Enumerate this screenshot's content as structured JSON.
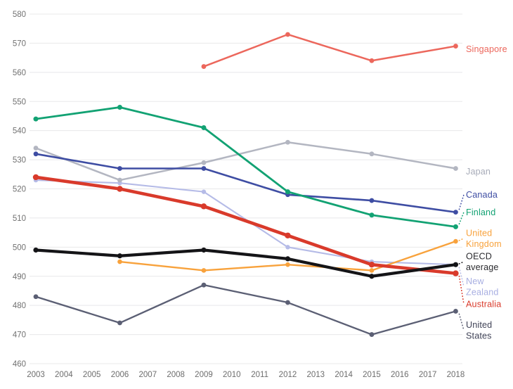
{
  "chart_data": {
    "type": "line",
    "title": "",
    "xlabel": "",
    "ylabel": "",
    "x_ticks": [
      2003,
      2004,
      2005,
      2006,
      2007,
      2008,
      2009,
      2010,
      2011,
      2012,
      2013,
      2014,
      2015,
      2016,
      2017,
      2018
    ],
    "y_ticks": [
      460,
      470,
      480,
      490,
      500,
      510,
      520,
      530,
      540,
      550,
      560,
      570,
      580
    ],
    "ylim": [
      460,
      580
    ],
    "grid": "horizontal",
    "legend_position": "right-direct-labels",
    "years": [
      2003,
      2006,
      2009,
      2012,
      2015,
      2018
    ],
    "series": [
      {
        "name": "Singapore",
        "label_lines": [
          "Singapore"
        ],
        "values": [
          null,
          null,
          562,
          573,
          564,
          569
        ],
        "color": "#ec675c",
        "label_color": "#ec675c",
        "width": 2.5,
        "marker_r": 3.4,
        "label_anchor": 568,
        "leader": false,
        "z": 7
      },
      {
        "name": "Japan",
        "label_lines": [
          "Japan"
        ],
        "values": [
          534,
          523,
          529,
          536,
          532,
          527
        ],
        "color": "#b3b6c1",
        "label_color": "#a7abb8",
        "width": 2.5,
        "marker_r": 3.4,
        "label_anchor": 526,
        "leader": false,
        "z": 2
      },
      {
        "name": "Canada",
        "label_lines": [
          "Canada"
        ],
        "values": [
          532,
          527,
          527,
          518,
          516,
          512
        ],
        "color": "#3e4da3",
        "label_color": "#3e4da3",
        "width": 2.6,
        "marker_r": 3.4,
        "label_anchor": 518,
        "leader": true,
        "z": 5
      },
      {
        "name": "Finland",
        "label_lines": [
          "Finland"
        ],
        "values": [
          544,
          548,
          541,
          519,
          511,
          507
        ],
        "color": "#12a273",
        "label_color": "#12a273",
        "width": 2.8,
        "marker_r": 3.5,
        "label_anchor": 512,
        "leader": true,
        "z": 6
      },
      {
        "name": "United Kingdom",
        "label_lines": [
          "United",
          "Kingdom"
        ],
        "values": [
          null,
          495,
          492,
          494,
          492,
          502
        ],
        "color": "#f8a23c",
        "label_color": "#f8a23c",
        "width": 2.4,
        "marker_r": 3.3,
        "label_anchor": 503,
        "leader": true,
        "z": 4
      },
      {
        "name": "OECD average",
        "label_lines": [
          "OECD",
          "average"
        ],
        "values": [
          499,
          497,
          499,
          496,
          490,
          494
        ],
        "color": "#141417",
        "label_color": "#2a2a2e",
        "width": 4.2,
        "marker_r": 3.6,
        "label_anchor": 495,
        "leader": true,
        "z": 9
      },
      {
        "name": "New Zealand",
        "label_lines": [
          "New",
          "Zealand"
        ],
        "values": [
          523,
          522,
          519,
          500,
          495,
          494
        ],
        "color": "#b5bbe7",
        "label_color": "#a8afe2",
        "width": 2.1,
        "marker_r": 3.2,
        "label_anchor": 486.5,
        "leader": true,
        "z": 1
      },
      {
        "name": "Australia",
        "label_lines": [
          "Australia"
        ],
        "values": [
          524,
          520,
          514,
          504,
          494,
          491
        ],
        "color": "#d93a2b",
        "label_color": "#d93a2b",
        "width": 4.6,
        "marker_r": 4.2,
        "label_anchor": 480.5,
        "leader": true,
        "z": 8
      },
      {
        "name": "United States",
        "label_lines": [
          "United",
          "States"
        ],
        "values": [
          483,
          474,
          487,
          481,
          470,
          478
        ],
        "color": "#5b5f74",
        "label_color": "#404357",
        "width": 2.3,
        "marker_r": 3.4,
        "label_anchor": 471.5,
        "leader": true,
        "z": 3
      }
    ],
    "colors": {
      "gridline": "#e8e8ea",
      "axis_text": "#6d6d6d",
      "background": "#ffffff"
    }
  }
}
